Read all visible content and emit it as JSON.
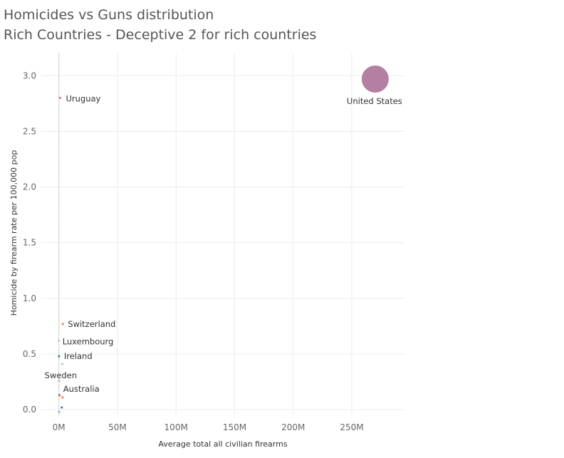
{
  "header": {
    "title": "Homicides vs Guns distribution",
    "subtitle": "Rich Countries - Deceptive 2 for rich countries"
  },
  "chart_data": {
    "type": "scatter",
    "title": "Homicides vs Guns distribution",
    "subtitle": "Rich Countries - Deceptive 2 for rich countries",
    "xlabel": "Average total all civilian firearms",
    "ylabel": "Homicide by firearm rate per 100,000 pop",
    "xlim": [
      -15000000,
      295000000
    ],
    "ylim": [
      -0.05,
      3.2
    ],
    "x_ticks": [
      0,
      50000000,
      100000000,
      150000000,
      200000000,
      250000000
    ],
    "x_tick_labels": [
      "0M",
      "50M",
      "100M",
      "150M",
      "200M",
      "250M"
    ],
    "y_ticks": [
      0.0,
      0.5,
      1.0,
      1.5,
      2.0,
      2.5,
      3.0
    ],
    "y_tick_labels": [
      "0.0",
      "0.5",
      "1.0",
      "1.5",
      "2.0",
      "2.5",
      "3.0"
    ],
    "grid": true,
    "points": [
      {
        "label": "United States",
        "x": 270000000,
        "y": 2.97,
        "size": "large",
        "color": "#b0789e"
      },
      {
        "label": "Uruguay",
        "x": 1100000,
        "y": 2.8,
        "size": "small",
        "color": "#e07a8a"
      },
      {
        "label": "Switzerland",
        "x": 3400000,
        "y": 0.77,
        "size": "small",
        "color": "#f08a3c"
      },
      {
        "label": "Luxembourg",
        "x": 15000,
        "y": 0.62,
        "size": "small",
        "color": "#c9c9c9"
      },
      {
        "label": "Ireland",
        "x": 120000,
        "y": 0.48,
        "size": "small",
        "color": "#4e79a7"
      },
      {
        "label": "Sweden",
        "x": 2800000,
        "y": 0.41,
        "size": "small",
        "color": "#bcbcbc"
      },
      {
        "label": "Australia",
        "x": 3100000,
        "y": 0.11,
        "size": "small",
        "color": "#f08a3c"
      },
      {
        "label": "",
        "x": 500000,
        "y": 0.13,
        "size": "small",
        "color": "#e15759"
      },
      {
        "label": "",
        "x": 2500000,
        "y": 0.02,
        "size": "small",
        "color": "#4e79a7"
      },
      {
        "label": "",
        "x": 300000,
        "y": -0.02,
        "size": "small",
        "color": "#8cd17d"
      },
      {
        "label": "",
        "x": 100000,
        "y": 0.26,
        "size": "small",
        "color": "#bcbcbc"
      }
    ]
  }
}
